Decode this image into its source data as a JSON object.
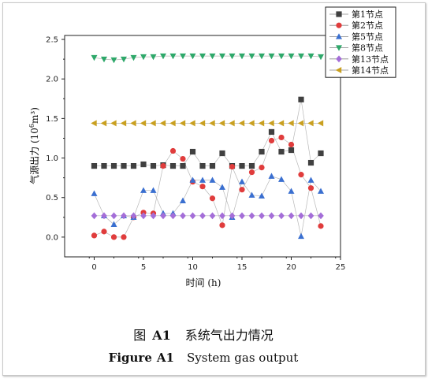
{
  "chart_data": {
    "type": "line",
    "xlabel": "时间 (h)",
    "ylabel_prefix": "气源出力 (10",
    "ylabel_sup": "6",
    "ylabel_suffix": "m³)",
    "xlim": [
      -3,
      25
    ],
    "ylim": [
      -0.25,
      2.55
    ],
    "xticks": [
      0,
      5,
      10,
      15,
      20,
      25
    ],
    "yticks": [
      "0.0",
      "0.5",
      "1.0",
      "1.5",
      "2.0",
      "2.5"
    ],
    "grid": false,
    "legend_position": "top-right",
    "x": [
      0,
      1,
      2,
      3,
      4,
      5,
      6,
      7,
      8,
      9,
      10,
      11,
      12,
      13,
      14,
      15,
      16,
      17,
      18,
      19,
      20,
      21,
      22,
      23
    ],
    "series": [
      {
        "name": "第1节点",
        "color": "#404040",
        "marker": "square",
        "values": [
          0.9,
          0.9,
          0.9,
          0.9,
          0.9,
          0.92,
          0.9,
          0.91,
          0.9,
          0.9,
          1.08,
          0.9,
          0.9,
          1.06,
          0.9,
          0.9,
          0.9,
          1.08,
          1.33,
          1.08,
          1.1,
          1.74,
          0.94,
          1.06
        ]
      },
      {
        "name": "第2节点",
        "color": "#e03c3c",
        "marker": "circle",
        "values": [
          0.02,
          0.07,
          0.0,
          0.0,
          0.25,
          0.31,
          0.3,
          0.9,
          1.09,
          0.99,
          0.7,
          0.64,
          0.49,
          0.15,
          0.89,
          0.6,
          0.82,
          0.88,
          1.22,
          1.26,
          1.17,
          0.79,
          0.62,
          0.14
        ]
      },
      {
        "name": "第5节点",
        "color": "#3a6fd0",
        "marker": "triangle-up",
        "values": [
          0.55,
          0.27,
          0.16,
          0.27,
          0.25,
          0.59,
          0.59,
          0.3,
          0.3,
          0.46,
          0.72,
          0.72,
          0.72,
          0.63,
          0.25,
          0.7,
          0.53,
          0.52,
          0.77,
          0.73,
          0.58,
          0.01,
          0.72,
          0.58
        ]
      },
      {
        "name": "第8节点",
        "color": "#2ea86a",
        "marker": "triangle-down",
        "values": [
          2.27,
          2.25,
          2.24,
          2.25,
          2.27,
          2.28,
          2.28,
          2.29,
          2.29,
          2.29,
          2.29,
          2.29,
          2.29,
          2.29,
          2.29,
          2.29,
          2.29,
          2.29,
          2.29,
          2.29,
          2.29,
          2.29,
          2.29,
          2.28
        ]
      },
      {
        "name": "第13节点",
        "color": "#a46ed8",
        "marker": "diamond",
        "values": [
          0.27,
          0.27,
          0.27,
          0.27,
          0.27,
          0.27,
          0.27,
          0.27,
          0.27,
          0.27,
          0.27,
          0.27,
          0.27,
          0.27,
          0.27,
          0.27,
          0.27,
          0.27,
          0.27,
          0.27,
          0.27,
          0.27,
          0.27,
          0.27
        ]
      },
      {
        "name": "第14节点",
        "color": "#c9a020",
        "marker": "triangle-left",
        "values": [
          1.44,
          1.44,
          1.44,
          1.44,
          1.44,
          1.44,
          1.44,
          1.44,
          1.44,
          1.44,
          1.44,
          1.44,
          1.44,
          1.44,
          1.44,
          1.44,
          1.44,
          1.44,
          1.44,
          1.44,
          1.44,
          1.44,
          1.44,
          1.44
        ]
      }
    ]
  },
  "caption": {
    "cn_prefix": "图",
    "cn_label": "A1",
    "cn_text": "系统气出力情况",
    "en_prefix": "Figure",
    "en_label": "A1",
    "en_text": "System gas output"
  }
}
